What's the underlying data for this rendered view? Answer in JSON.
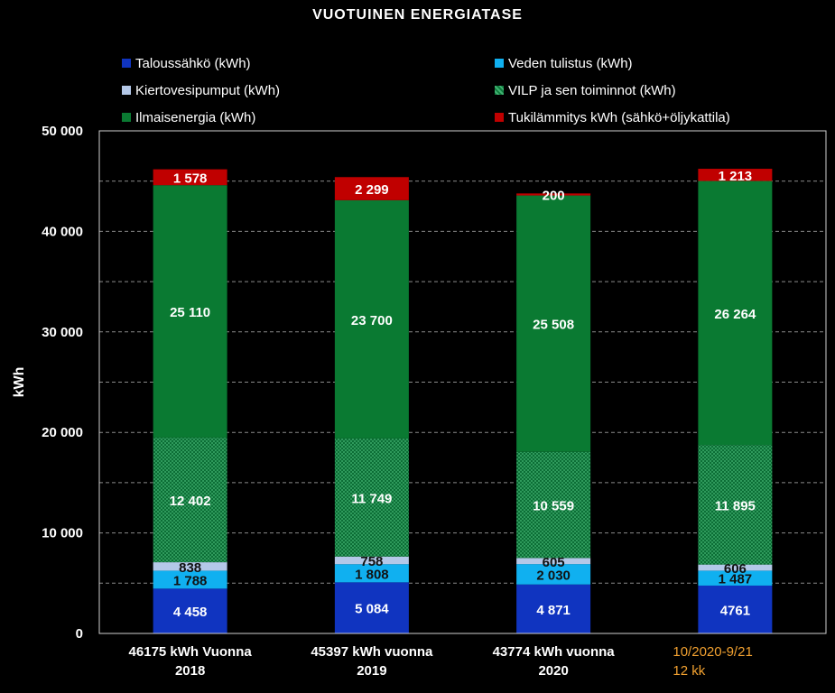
{
  "chart_data": {
    "type": "stacked-bar",
    "title": "VUOTUINEN ENERGIATASE",
    "ylabel": "kWh",
    "ylim": [
      0,
      50000
    ],
    "yticks": [
      "0",
      "10 000",
      "20 000",
      "30 000",
      "40 000",
      "50 000"
    ],
    "ytick_values": [
      0,
      10000,
      20000,
      30000,
      40000,
      50000
    ],
    "categories": [
      {
        "line1": "46175  kWh Vuonna",
        "line2": "2018",
        "highlight": false
      },
      {
        "line1": "45397  kWh vuonna",
        "line2": "2019",
        "highlight": false
      },
      {
        "line1": "43774  kWh vuonna",
        "line2": "2020",
        "highlight": false
      },
      {
        "line1": "10/2020-9/21",
        "line2": "12 kk",
        "highlight": true
      }
    ],
    "series": [
      {
        "name": "Taloussähkö (kWh)",
        "color": "#1034c0",
        "label_color": "#ffffff",
        "values": [
          4458,
          5084,
          4871,
          4761
        ],
        "labels": [
          "4 458",
          "5 084",
          "4 871",
          "4761"
        ]
      },
      {
        "name": "Veden tulistus (kWh)",
        "color": "#10b0f0",
        "label_color": "#111111",
        "values": [
          1788,
          1808,
          2030,
          1487
        ],
        "labels": [
          "1 788",
          "1 808",
          "2 030",
          "1 487"
        ]
      },
      {
        "name": "Kiertovesipumput (kWh)",
        "color": "#b4c8e8",
        "label_color": "#111111",
        "values": [
          838,
          758,
          605,
          606
        ],
        "labels": [
          "838",
          "758",
          "605",
          "606"
        ]
      },
      {
        "name": "VILP ja sen toiminnot (kWh)",
        "color": "#0f7a3c",
        "pattern": "dotted",
        "label_color": "#ffffff",
        "values": [
          12402,
          11749,
          10559,
          11895
        ],
        "labels": [
          "12 402",
          "11 749",
          "10 559",
          "11 895"
        ]
      },
      {
        "name": "Ilmaisenergia (kWh)",
        "color": "#0a7a32",
        "label_color": "#ffffff",
        "values": [
          25110,
          23700,
          25508,
          26264
        ],
        "labels": [
          "25 110",
          "23 700",
          "25 508",
          "26 264"
        ]
      },
      {
        "name": "Tukilämmitys kWh (sähkö+öljykattila)",
        "color": "#c00000",
        "label_color": "#ffffff",
        "values": [
          1578,
          2299,
          200,
          1213
        ],
        "labels": [
          "1 578",
          "2 299",
          "200",
          "1 213"
        ]
      }
    ],
    "grid": true,
    "legend": "top"
  }
}
